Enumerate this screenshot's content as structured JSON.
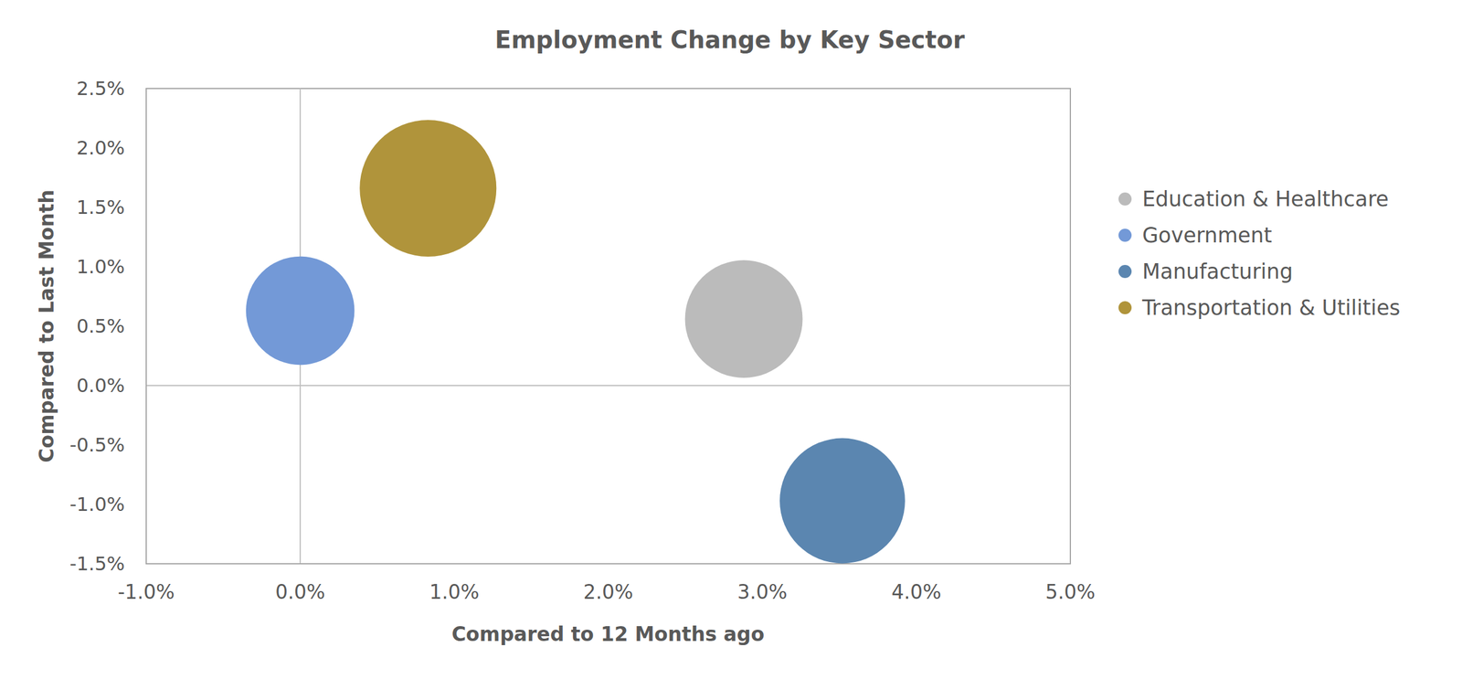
{
  "chart_data": {
    "type": "bubble",
    "title": "Employment Change by Key Sector",
    "x_label": "Compared to 12 Months ago",
    "y_label": "Compared to Last Month",
    "series": [
      {
        "name": "Education & Healthcare",
        "color": "#bbbbbb",
        "x": [
          2.88
        ],
        "values": [
          0.56
        ],
        "sizes": [
          74
        ]
      },
      {
        "name": "Government",
        "color": "#7399d7",
        "x": [
          0.0
        ],
        "values": [
          0.63
        ],
        "sizes": [
          63
        ]
      },
      {
        "name": "Manufacturing",
        "color": "#5b86b0",
        "x": [
          3.52
        ],
        "values": [
          -0.97
        ],
        "sizes": [
          84
        ]
      },
      {
        "name": "Transportation & Utilities",
        "color": "#b0943b",
        "x": [
          0.83
        ],
        "values": [
          1.66
        ],
        "sizes": [
          100
        ]
      }
    ],
    "xlim": [
      -1,
      5
    ],
    "xticks": [
      {
        "value": -1,
        "label": "-1.0%"
      },
      {
        "value": 0,
        "label": "0.0%"
      },
      {
        "value": 1,
        "label": "1.0%"
      },
      {
        "value": 2,
        "label": "2.0%"
      },
      {
        "value": 3,
        "label": "3.0%"
      },
      {
        "value": 4,
        "label": "4.0%"
      },
      {
        "value": 5,
        "label": "5.0%"
      }
    ],
    "ylim": [
      -1.5,
      2.5
    ],
    "yticks": [
      {
        "value": -1.5,
        "label": "-1.5%"
      },
      {
        "value": -1,
        "label": "-1.0%"
      },
      {
        "value": -0.5,
        "label": "-0.5%"
      },
      {
        "value": 0,
        "label": "0.0%"
      },
      {
        "value": 0.5,
        "label": "0.5%"
      },
      {
        "value": 1,
        "label": "1.0%"
      },
      {
        "value": 1.5,
        "label": "1.5%"
      },
      {
        "value": 2,
        "label": "2.0%"
      },
      {
        "value": 2.5,
        "label": "2.5%"
      }
    ],
    "grid": false,
    "legend": "right"
  }
}
